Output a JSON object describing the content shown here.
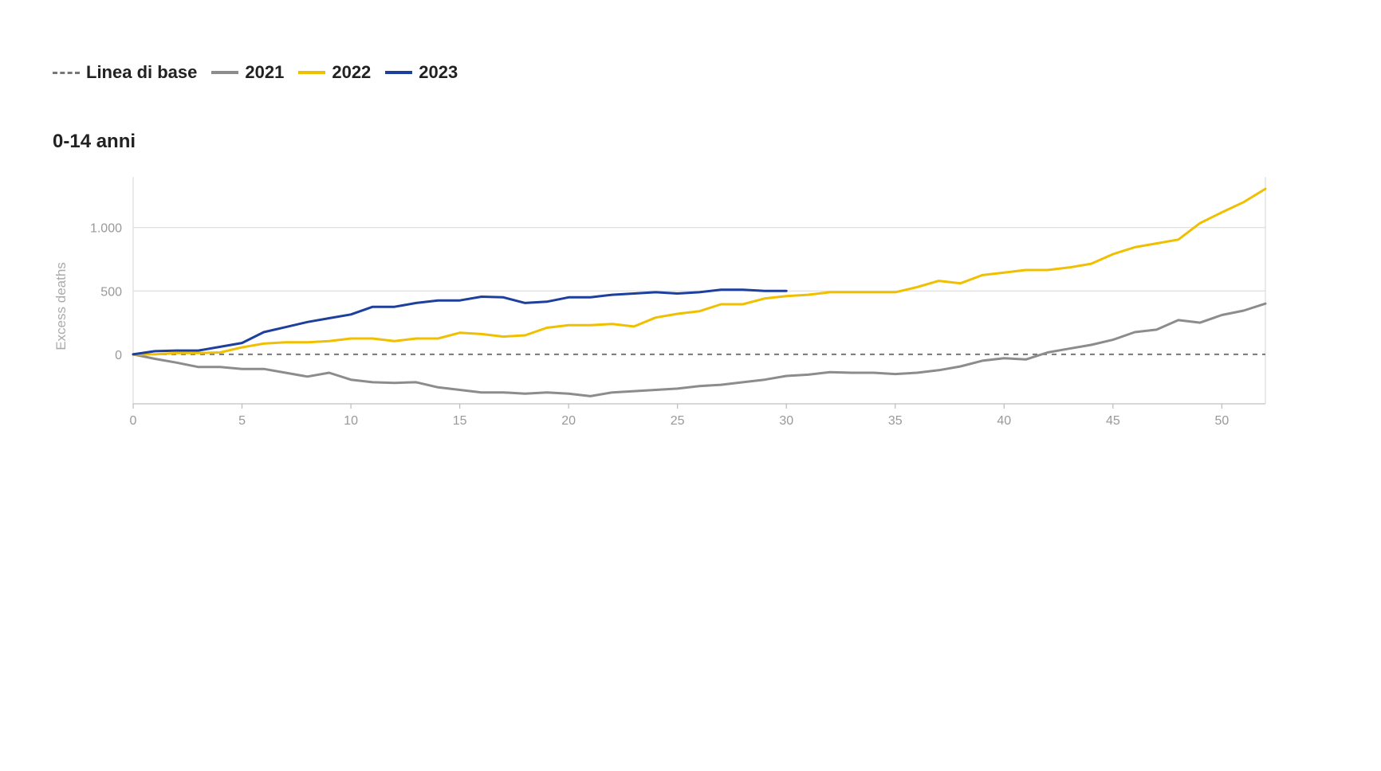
{
  "legend": {
    "items": [
      {
        "label": "Linea di base",
        "color": "#777777",
        "style": "dashed"
      },
      {
        "label": "2021",
        "color": "#8c8c8c",
        "style": "solid"
      },
      {
        "label": "2022",
        "color": "#f0c000",
        "style": "solid"
      },
      {
        "label": "2023",
        "color": "#1d3f9e",
        "style": "solid"
      }
    ]
  },
  "chart_data": {
    "type": "line",
    "title": "0-14 anni",
    "xlabel": "",
    "ylabel": "Excess deaths",
    "xlim": [
      0,
      52
    ],
    "ylim": [
      -390,
      1400
    ],
    "x_ticks": [
      0,
      5,
      10,
      15,
      20,
      25,
      30,
      35,
      40,
      45,
      50
    ],
    "y_ticks": [
      0,
      500,
      1000
    ],
    "y_tick_labels": [
      "0",
      "500",
      "1.000"
    ],
    "grid": true,
    "legend_position": "top-left",
    "baseline": {
      "name": "Linea di base",
      "value": 0,
      "color": "#777777"
    },
    "series": [
      {
        "name": "2021",
        "color": "#8c8c8c",
        "x": [
          0,
          1,
          2,
          3,
          4,
          5,
          6,
          7,
          8,
          9,
          10,
          11,
          12,
          13,
          14,
          15,
          16,
          17,
          18,
          19,
          20,
          21,
          22,
          23,
          24,
          25,
          26,
          27,
          28,
          29,
          30,
          31,
          32,
          33,
          34,
          35,
          36,
          37,
          38,
          39,
          40,
          41,
          42,
          43,
          44,
          45,
          46,
          47,
          48,
          49,
          50,
          51,
          52
        ],
        "y": [
          0,
          -35,
          -65,
          -100,
          -100,
          -115,
          -115,
          -145,
          -175,
          -145,
          -200,
          -220,
          -225,
          -220,
          -260,
          -280,
          -300,
          -300,
          -310,
          -300,
          -310,
          -330,
          -300,
          -290,
          -280,
          -270,
          -250,
          -240,
          -220,
          -200,
          -170,
          -160,
          -140,
          -145,
          -145,
          -155,
          -145,
          -125,
          -95,
          -50,
          -30,
          -40,
          15,
          45,
          75,
          115,
          175,
          195,
          270,
          250,
          310,
          345,
          400
        ]
      },
      {
        "name": "2022",
        "color": "#f0c000",
        "x": [
          0,
          1,
          2,
          3,
          4,
          5,
          6,
          7,
          8,
          9,
          10,
          11,
          12,
          13,
          14,
          15,
          16,
          17,
          18,
          19,
          20,
          21,
          22,
          23,
          24,
          25,
          26,
          27,
          28,
          29,
          30,
          31,
          32,
          33,
          34,
          35,
          36,
          37,
          38,
          39,
          40,
          41,
          42,
          43,
          44,
          45,
          46,
          47,
          48,
          49,
          50,
          51,
          52
        ],
        "y": [
          0,
          0,
          10,
          10,
          15,
          55,
          85,
          95,
          95,
          105,
          125,
          125,
          105,
          125,
          125,
          170,
          160,
          140,
          150,
          210,
          230,
          230,
          240,
          220,
          290,
          320,
          340,
          395,
          395,
          440,
          460,
          470,
          490,
          490,
          490,
          490,
          530,
          580,
          560,
          625,
          645,
          665,
          665,
          685,
          715,
          790,
          845,
          875,
          905,
          1035,
          1120,
          1200,
          1305
        ]
      },
      {
        "name": "2023",
        "color": "#1d3f9e",
        "x": [
          0,
          1,
          2,
          3,
          4,
          5,
          6,
          7,
          8,
          9,
          10,
          11,
          12,
          13,
          14,
          15,
          16,
          17,
          18,
          19,
          20,
          21,
          22,
          23,
          24,
          25,
          26,
          27,
          28,
          29,
          30
        ],
        "y": [
          0,
          25,
          30,
          30,
          60,
          90,
          175,
          215,
          255,
          285,
          315,
          375,
          375,
          405,
          425,
          425,
          455,
          450,
          405,
          415,
          450,
          450,
          470,
          480,
          490,
          480,
          490,
          510,
          510,
          500,
          500
        ]
      }
    ]
  }
}
